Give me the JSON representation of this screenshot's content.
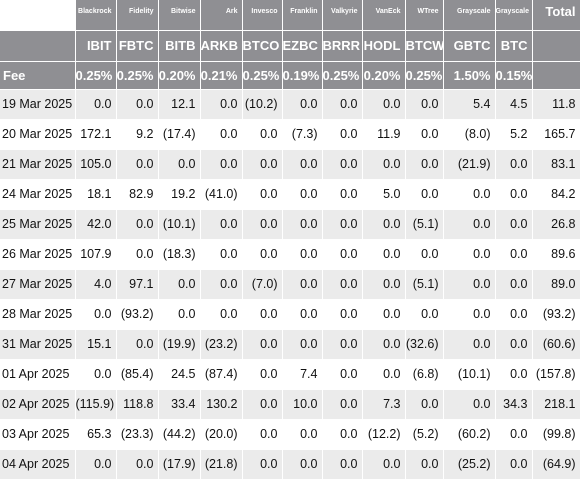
{
  "table": {
    "total_label": "Total",
    "fee_label": "Fee",
    "columns": [
      {
        "issuer": "Blackrock",
        "ticker": "IBIT",
        "fee": "0.25%"
      },
      {
        "issuer": "Fidelity",
        "ticker": "FBTC",
        "fee": "0.25%"
      },
      {
        "issuer": "Bitwise",
        "ticker": "BITB",
        "fee": "0.20%"
      },
      {
        "issuer": "Ark",
        "ticker": "ARKB",
        "fee": "0.21%"
      },
      {
        "issuer": "Invesco",
        "ticker": "BTCO",
        "fee": "0.25%"
      },
      {
        "issuer": "Franklin",
        "ticker": "EZBC",
        "fee": "0.19%"
      },
      {
        "issuer": "Valkyrie",
        "ticker": "BRRR",
        "fee": "0.25%"
      },
      {
        "issuer": "VanEck",
        "ticker": "HODL",
        "fee": "0.20%"
      },
      {
        "issuer": "WTree",
        "ticker": "BTCW",
        "fee": "0.25%"
      },
      {
        "issuer": "Grayscale",
        "ticker": "GBTC",
        "fee": "1.50%"
      },
      {
        "issuer": "Grayscale",
        "ticker": "BTC",
        "fee": "0.15%"
      }
    ],
    "rows": [
      {
        "date": "19 Mar 2025",
        "values": [
          "0.0",
          "0.0",
          "12.1",
          "0.0",
          "(10.2)",
          "0.0",
          "0.0",
          "0.0",
          "0.0",
          "5.4",
          "4.5"
        ],
        "total": "11.8"
      },
      {
        "date": "20 Mar 2025",
        "values": [
          "172.1",
          "9.2",
          "(17.4)",
          "0.0",
          "0.0",
          "(7.3)",
          "0.0",
          "11.9",
          "0.0",
          "(8.0)",
          "5.2"
        ],
        "total": "165.7"
      },
      {
        "date": "21 Mar 2025",
        "values": [
          "105.0",
          "0.0",
          "0.0",
          "0.0",
          "0.0",
          "0.0",
          "0.0",
          "0.0",
          "0.0",
          "(21.9)",
          "0.0"
        ],
        "total": "83.1"
      },
      {
        "date": "24 Mar 2025",
        "values": [
          "18.1",
          "82.9",
          "19.2",
          "(41.0)",
          "0.0",
          "0.0",
          "0.0",
          "5.0",
          "0.0",
          "0.0",
          "0.0"
        ],
        "total": "84.2"
      },
      {
        "date": "25 Mar 2025",
        "values": [
          "42.0",
          "0.0",
          "(10.1)",
          "0.0",
          "0.0",
          "0.0",
          "0.0",
          "0.0",
          "(5.1)",
          "0.0",
          "0.0"
        ],
        "total": "26.8"
      },
      {
        "date": "26 Mar 2025",
        "values": [
          "107.9",
          "0.0",
          "(18.3)",
          "0.0",
          "0.0",
          "0.0",
          "0.0",
          "0.0",
          "0.0",
          "0.0",
          "0.0"
        ],
        "total": "89.6"
      },
      {
        "date": "27 Mar 2025",
        "values": [
          "4.0",
          "97.1",
          "0.0",
          "0.0",
          "(7.0)",
          "0.0",
          "0.0",
          "0.0",
          "(5.1)",
          "0.0",
          "0.0"
        ],
        "total": "89.0"
      },
      {
        "date": "28 Mar 2025",
        "values": [
          "0.0",
          "(93.2)",
          "0.0",
          "0.0",
          "0.0",
          "0.0",
          "0.0",
          "0.0",
          "0.0",
          "0.0",
          "0.0"
        ],
        "total": "(93.2)"
      },
      {
        "date": "31 Mar 2025",
        "values": [
          "15.1",
          "0.0",
          "(19.9)",
          "(23.2)",
          "0.0",
          "0.0",
          "0.0",
          "0.0",
          "(32.6)",
          "0.0",
          "0.0"
        ],
        "total": "(60.6)"
      },
      {
        "date": "01 Apr 2025",
        "values": [
          "0.0",
          "(85.4)",
          "24.5",
          "(87.4)",
          "0.0",
          "7.4",
          "0.0",
          "0.0",
          "(6.8)",
          "(10.1)",
          "0.0"
        ],
        "total": "(157.8)"
      },
      {
        "date": "02 Apr 2025",
        "values": [
          "(115.9)",
          "118.8",
          "33.4",
          "130.2",
          "0.0",
          "10.0",
          "0.0",
          "7.3",
          "0.0",
          "0.0",
          "34.3"
        ],
        "total": "218.1"
      },
      {
        "date": "03 Apr 2025",
        "values": [
          "65.3",
          "(23.3)",
          "(44.2)",
          "(20.0)",
          "0.0",
          "0.0",
          "0.0",
          "(12.2)",
          "(5.2)",
          "(60.2)",
          "0.0"
        ],
        "total": "(99.8)"
      },
      {
        "date": "04 Apr 2025",
        "values": [
          "0.0",
          "0.0",
          "(17.9)",
          "(21.8)",
          "0.0",
          "0.0",
          "0.0",
          "0.0",
          "0.0",
          "(25.2)",
          "0.0"
        ],
        "total": "(64.9)"
      }
    ]
  }
}
